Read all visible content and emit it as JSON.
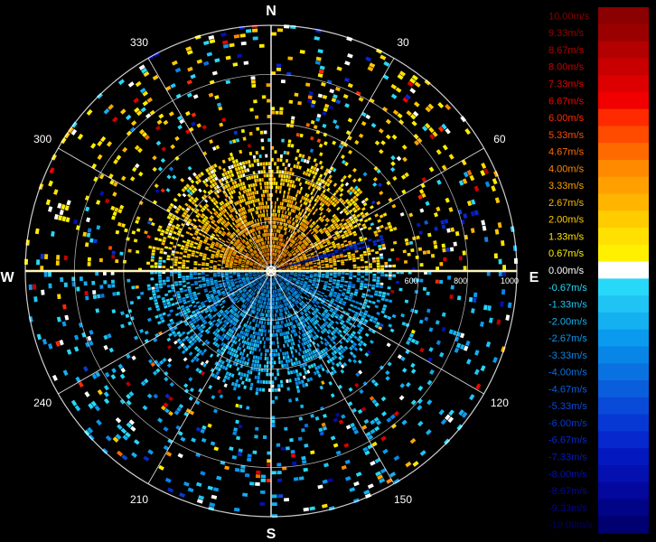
{
  "chart_data": {
    "type": "polar-radial-velocity",
    "cardinals": {
      "north": "N",
      "east": "E",
      "south": "S",
      "west": "W"
    },
    "bearing_labels": [
      "30",
      "60",
      "120",
      "150",
      "210",
      "240",
      "300",
      "330"
    ],
    "bearing_values": [
      30,
      60,
      120,
      150,
      210,
      240,
      300,
      330
    ],
    "range_ring_labels": [
      "600",
      "800",
      "1000"
    ],
    "range_ring_values": [
      600,
      800,
      1000
    ],
    "range_max": 1000,
    "colorbar": {
      "labels": [
        "10.00m/s",
        "9.33m/s",
        "8.67m/s",
        "8.00m/s",
        "7.33m/s",
        "6.67m/s",
        "6.00m/s",
        "5.33m/s",
        "4.67m/s",
        "4.00m/s",
        "3.33m/s",
        "2.67m/s",
        "2.00m/s",
        "1.33m/s",
        "0.67m/s",
        "0.00m/s",
        "-0.67m/s",
        "-1.33m/s",
        "-2.00m/s",
        "-2.67m/s",
        "-3.33m/s",
        "-4.00m/s",
        "-4.67m/s",
        "-5.33m/s",
        "-6.00m/s",
        "-6.67m/s",
        "-7.33m/s",
        "-8.00m/s",
        "-8.67m/s",
        "-9.33m/s",
        "-10.00m/s"
      ],
      "values": [
        10.0,
        9.33,
        8.67,
        8.0,
        7.33,
        6.67,
        6.0,
        5.33,
        4.67,
        4.0,
        3.33,
        2.67,
        2.0,
        1.33,
        0.67,
        0.0,
        -0.67,
        -1.33,
        -2.0,
        -2.67,
        -3.33,
        -4.0,
        -4.67,
        -5.33,
        -6.0,
        -6.67,
        -7.33,
        -8.0,
        -8.67,
        -9.33,
        -10.0
      ],
      "colors": [
        "#8b0000",
        "#9b0000",
        "#b30000",
        "#c80000",
        "#dd0000",
        "#f00000",
        "#ff2a00",
        "#ff4b00",
        "#ff6a00",
        "#ff8a00",
        "#ffa000",
        "#ffb400",
        "#ffcc00",
        "#ffe000",
        "#fff000",
        "#ffffff",
        "#28d8f8",
        "#20c4f4",
        "#14b0f0",
        "#0a9aee",
        "#0886e8",
        "#0a72e0",
        "#0a5edc",
        "#0a4ad8",
        "#0838d4",
        "#0628cc",
        "#0418c0",
        "#0410b0",
        "#04089c",
        "#020488",
        "#000070"
      ]
    },
    "sectors": [
      {
        "bearing_start": 0,
        "bearing_end": 90,
        "velocity_near": 4.0,
        "velocity_far": 1.0
      },
      {
        "bearing_start": 270,
        "bearing_end": 360,
        "velocity_near": 4.0,
        "velocity_far": 1.0
      },
      {
        "bearing_start": 90,
        "bearing_end": 270,
        "velocity_near": -3.5,
        "velocity_far": -1.5
      },
      {
        "bearing_start": 72,
        "bearing_end": 76,
        "velocity_near": -6.0,
        "velocity_far": -6.0
      }
    ],
    "echo_extent": {
      "dense_range_to": 480,
      "scattered_range_to": 1000
    }
  }
}
